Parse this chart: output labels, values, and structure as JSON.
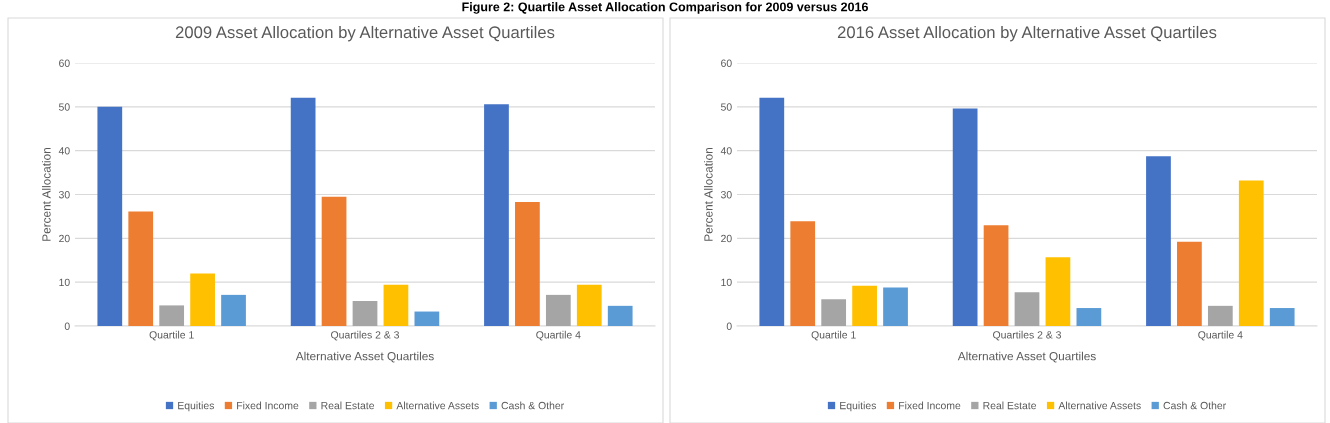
{
  "chart_data": [
    {
      "type": "bar",
      "title": "2009 Asset Allocation by Alternative Asset Quartiles",
      "xlabel": "Alternative Asset Quartiles",
      "ylabel": "Percent Allocation",
      "annotations": [
        "Figure 2: Quartile Asset Allocation Comparison for 2009 versus 2016"
      ],
      "categories": [
        "Quartile 1",
        "Quartiles 2 & 3",
        "Quartile 4"
      ],
      "series": [
        {
          "name": "Equities",
          "color": "#4472c4",
          "values": [
            50.0,
            52.1,
            50.6
          ]
        },
        {
          "name": "Fixed Income",
          "color": "#ed7d31",
          "values": [
            26.1,
            29.5,
            28.3
          ]
        },
        {
          "name": "Real Estate",
          "color": "#a5a5a5",
          "values": [
            4.7,
            5.7,
            7.1
          ]
        },
        {
          "name": "Alternative Assets",
          "color": "#ffc000",
          "values": [
            12.0,
            9.4,
            9.4
          ]
        },
        {
          "name": "Cash & Other",
          "color": "#5b9bd5",
          "values": [
            7.1,
            3.3,
            4.6
          ]
        }
      ],
      "ylim": [
        0,
        60
      ],
      "yticks": [
        0,
        10,
        20,
        30,
        40,
        50,
        60
      ],
      "grid": "y",
      "legend": "bottom"
    },
    {
      "type": "bar",
      "title": "2016 Asset Allocation by Alternative Asset Quartiles",
      "xlabel": "Alternative Asset Quartiles",
      "ylabel": "Percent Allocation",
      "categories": [
        "Quartile 1",
        "Quartiles 2 & 3",
        "Quartile 4"
      ],
      "series": [
        {
          "name": "Equities",
          "color": "#4472c4",
          "values": [
            52.1,
            49.6,
            38.7
          ]
        },
        {
          "name": "Fixed Income",
          "color": "#ed7d31",
          "values": [
            23.9,
            23.0,
            19.2
          ]
        },
        {
          "name": "Real Estate",
          "color": "#a5a5a5",
          "values": [
            6.1,
            7.7,
            4.6
          ]
        },
        {
          "name": "Alternative Assets",
          "color": "#ffc000",
          "values": [
            9.2,
            15.7,
            33.2
          ]
        },
        {
          "name": "Cash & Other",
          "color": "#5b9bd5",
          "values": [
            8.8,
            4.1,
            4.1
          ]
        }
      ],
      "ylim": [
        0,
        60
      ],
      "yticks": [
        0,
        10,
        20,
        30,
        40,
        50,
        60
      ],
      "grid": "y",
      "legend": "bottom"
    }
  ]
}
